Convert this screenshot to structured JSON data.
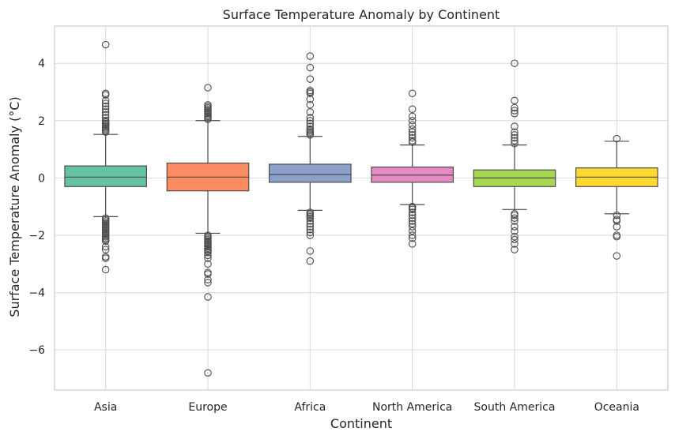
{
  "chart_data": {
    "type": "box",
    "title": "Surface Temperature Anomaly by Continent",
    "xlabel": "Continent",
    "ylabel": "Surface Temperature Anomaly (°C)",
    "ylim": [
      -7.4,
      5.3
    ],
    "yticks": [
      -6,
      -4,
      -2,
      0,
      2,
      4
    ],
    "grid": true,
    "categories": [
      "Asia",
      "Europe",
      "Africa",
      "North America",
      "South America",
      "Oceania"
    ],
    "colors": [
      "#66c2a5",
      "#fc8d62",
      "#8da0cb",
      "#e78ac3",
      "#a6d854",
      "#ffd92f"
    ],
    "boxes": [
      {
        "name": "Asia",
        "whisker_low": -1.35,
        "q1": -0.3,
        "median": 0.03,
        "q3": 0.42,
        "whisker_high": 1.52,
        "outliers": [
          4.65,
          2.95,
          2.9,
          2.7,
          2.6,
          2.5,
          2.4,
          2.3,
          2.2,
          2.1,
          2.0,
          1.95,
          1.9,
          1.85,
          1.8,
          1.75,
          1.7,
          1.65,
          1.6,
          -1.4,
          -1.45,
          -1.5,
          -1.55,
          -1.6,
          -1.65,
          -1.7,
          -1.75,
          -1.8,
          -1.85,
          -1.9,
          -1.95,
          -2.0,
          -2.05,
          -2.1,
          -2.15,
          -2.2,
          -2.4,
          -2.5,
          -2.75,
          -2.8,
          -3.2
        ]
      },
      {
        "name": "Europe",
        "whisker_low": -1.93,
        "q1": -0.45,
        "median": 0.03,
        "q3": 0.52,
        "whisker_high": 2.0,
        "outliers": [
          3.15,
          2.55,
          2.5,
          2.45,
          2.4,
          2.35,
          2.3,
          2.25,
          2.2,
          2.15,
          2.1,
          2.05,
          -2.0,
          -2.05,
          -2.1,
          -2.15,
          -2.2,
          -2.25,
          -2.3,
          -2.35,
          -2.4,
          -2.45,
          -2.5,
          -2.55,
          -2.6,
          -2.7,
          -2.8,
          -3.0,
          -3.3,
          -3.35,
          -3.55,
          -3.65,
          -4.15,
          -6.8
        ]
      },
      {
        "name": "Africa",
        "whisker_low": -1.13,
        "q1": -0.15,
        "median": 0.12,
        "q3": 0.48,
        "whisker_high": 1.45,
        "outliers": [
          4.25,
          3.85,
          3.45,
          3.05,
          3.0,
          2.95,
          2.75,
          2.55,
          2.3,
          2.1,
          2.0,
          1.9,
          1.8,
          1.7,
          1.65,
          1.6,
          1.55,
          1.5,
          -1.2,
          -1.25,
          -1.3,
          -1.35,
          -1.4,
          -1.5,
          -1.6,
          -1.7,
          -1.8,
          -1.9,
          -2.0,
          -2.55,
          -2.9
        ]
      },
      {
        "name": "North America",
        "whisker_low": -0.93,
        "q1": -0.15,
        "median": 0.1,
        "q3": 0.38,
        "whisker_high": 1.15,
        "outliers": [
          2.95,
          2.4,
          2.15,
          2.0,
          1.85,
          1.7,
          1.6,
          1.5,
          1.4,
          1.3,
          1.25,
          -1.0,
          -1.05,
          -1.1,
          -1.2,
          -1.3,
          -1.4,
          -1.5,
          -1.6,
          -1.7,
          -1.85,
          -2.0,
          -2.1,
          -2.3
        ]
      },
      {
        "name": "South America",
        "whisker_low": -1.1,
        "q1": -0.3,
        "median": 0.0,
        "q3": 0.28,
        "whisker_high": 1.15,
        "outliers": [
          4.0,
          2.7,
          2.45,
          2.35,
          2.25,
          1.8,
          1.6,
          1.5,
          1.4,
          1.3,
          1.2,
          -1.25,
          -1.3,
          -1.4,
          -1.5,
          -1.7,
          -1.85,
          -2.05,
          -2.15,
          -2.3,
          -2.5
        ]
      },
      {
        "name": "Oceania",
        "whisker_low": -1.25,
        "q1": -0.3,
        "median": 0.03,
        "q3": 0.35,
        "whisker_high": 1.28,
        "outliers": [
          1.37,
          -1.3,
          -1.45,
          -1.5,
          -1.7,
          -2.0,
          -2.05,
          -2.72
        ]
      }
    ]
  }
}
